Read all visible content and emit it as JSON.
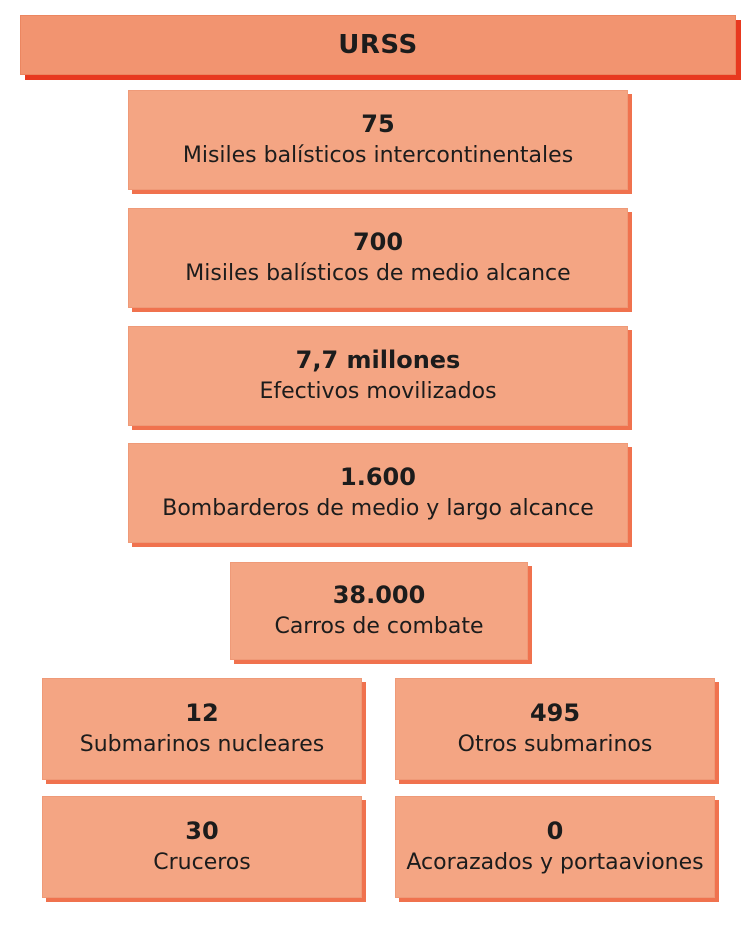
{
  "title": "URSS",
  "items": [
    {
      "value": "75",
      "label": "Misiles balísticos intercontinentales"
    },
    {
      "value": "700",
      "label": "Misiles balísticos de medio alcance"
    },
    {
      "value": "7,7 millones",
      "label": "Efectivos movilizados"
    },
    {
      "value": "1.600",
      "label": "Bombarderos de medio y largo alcance"
    },
    {
      "value": "38.000",
      "label": "Carros de combate"
    },
    {
      "value": "12",
      "label": "Submarinos nucleares"
    },
    {
      "value": "495",
      "label": "Otros submarinos"
    },
    {
      "value": "30",
      "label": "Cruceros"
    },
    {
      "value": "0",
      "label": "Acorazados y portaaviones"
    }
  ],
  "colors": {
    "box_fill": "#f4a583",
    "box_shadow": "#f0724e",
    "title_fill": "#f29470",
    "title_shadow": "#e8391f"
  }
}
